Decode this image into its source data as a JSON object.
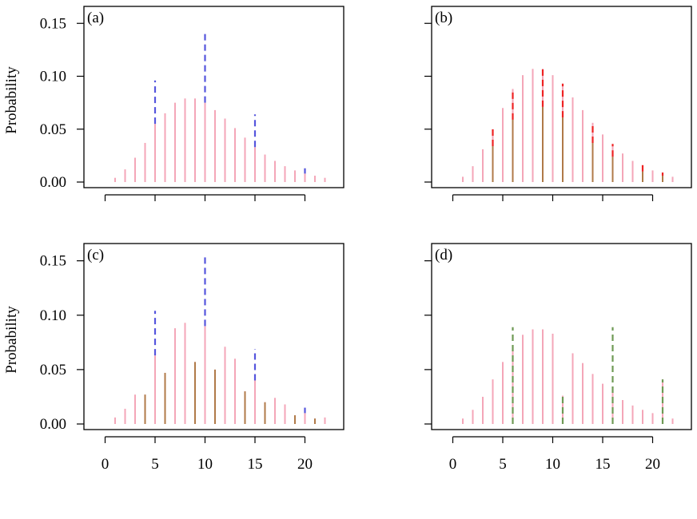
{
  "ylabel": "Probability",
  "colors": {
    "base": "#f4a6b8",
    "overlay": "#b07a48",
    "blue": "#5555dd",
    "red": "#ee2222",
    "green": "#6f9a55"
  },
  "chart_data": [
    {
      "type": "bar",
      "panel_label": "(a)",
      "ylabel": "Probability",
      "xlim": [
        -1,
        23
      ],
      "ylim": [
        0,
        0.16
      ],
      "yticks": [
        0.0,
        0.05,
        0.1,
        0.15
      ],
      "ytick_labels": [
        "0.00",
        "0.05",
        "0.10",
        "0.15"
      ],
      "xticks": [
        0,
        5,
        10,
        15,
        20
      ],
      "xtick_labels": [],
      "x": [
        1,
        2,
        3,
        4,
        5,
        6,
        7,
        8,
        9,
        10,
        11,
        12,
        13,
        14,
        15,
        16,
        17,
        18,
        19,
        20,
        21,
        22
      ],
      "series": [
        {
          "role": "base",
          "style": "solid",
          "color_key": "base",
          "values": [
            0.004,
            0.012,
            0.023,
            0.037,
            0.055,
            0.065,
            0.075,
            0.079,
            0.079,
            0.075,
            0.068,
            0.06,
            0.051,
            0.042,
            0.033,
            0.026,
            0.02,
            0.015,
            0.011,
            0.008,
            0.006,
            0.004
          ]
        },
        {
          "role": "overlay",
          "style": "dashed",
          "color_key": "blue",
          "x": [
            5,
            10,
            15,
            20
          ],
          "bottoms": [
            0.055,
            0.075,
            0.033,
            0.008
          ],
          "values": [
            0.096,
            0.143,
            0.064,
            0.013
          ]
        }
      ]
    },
    {
      "type": "bar",
      "panel_label": "(b)",
      "ylabel": "",
      "xlim": [
        -1,
        23
      ],
      "ylim": [
        0,
        0.16
      ],
      "yticks": [
        0.0,
        0.05,
        0.1,
        0.15
      ],
      "ytick_labels": [],
      "xticks": [
        0,
        5,
        10,
        15,
        20
      ],
      "xtick_labels": [],
      "x": [
        1,
        2,
        3,
        4,
        5,
        6,
        7,
        8,
        9,
        10,
        11,
        12,
        13,
        14,
        15,
        16,
        17,
        18,
        19,
        20,
        21,
        22
      ],
      "series": [
        {
          "role": "base",
          "style": "solid",
          "color_key": "base",
          "values": [
            0.005,
            0.015,
            0.031,
            0.05,
            0.07,
            0.088,
            0.101,
            0.107,
            0.107,
            0.101,
            0.092,
            0.08,
            0.068,
            0.056,
            0.045,
            0.035,
            0.027,
            0.02,
            0.015,
            0.011,
            0.008,
            0.005
          ]
        },
        {
          "role": "overlay",
          "style": "solid",
          "color_key": "overlay",
          "x": [
            4,
            6,
            9,
            11,
            14,
            16,
            19,
            21
          ],
          "values": [
            0.034,
            0.059,
            0.071,
            0.061,
            0.037,
            0.024,
            0.01,
            0.006
          ]
        },
        {
          "role": "overlay",
          "style": "dashed",
          "color_key": "red",
          "x": [
            4,
            6,
            9,
            11,
            14,
            16,
            19,
            21
          ],
          "bottoms": [
            0.034,
            0.059,
            0.071,
            0.061,
            0.037,
            0.024,
            0.01,
            0.006
          ],
          "values": [
            0.051,
            0.088,
            0.108,
            0.093,
            0.056,
            0.036,
            0.016,
            0.009
          ]
        }
      ]
    },
    {
      "type": "bar",
      "panel_label": "(c)",
      "ylabel": "Probability",
      "xlim": [
        -1,
        23
      ],
      "ylim": [
        0,
        0.16
      ],
      "yticks": [
        0.0,
        0.05,
        0.1,
        0.15
      ],
      "ytick_labels": [
        "0.00",
        "0.05",
        "0.10",
        "0.15"
      ],
      "xticks": [
        0,
        5,
        10,
        15,
        20
      ],
      "xtick_labels": [
        "0",
        "5",
        "10",
        "15",
        "20"
      ],
      "x": [
        1,
        2,
        3,
        4,
        5,
        6,
        7,
        8,
        9,
        10,
        11,
        12,
        13,
        14,
        15,
        16,
        17,
        18,
        19,
        20,
        21,
        22
      ],
      "series": [
        {
          "role": "base",
          "style": "solid",
          "color_key": "base",
          "values": [
            0.006,
            0.014,
            0.027,
            0.027,
            0.063,
            0.047,
            0.088,
            0.093,
            0.057,
            0.09,
            0.05,
            0.071,
            0.06,
            0.03,
            0.04,
            0.02,
            0.024,
            0.018,
            0.008,
            0.01,
            0.005,
            0.006
          ]
        },
        {
          "role": "overlay",
          "style": "solid",
          "color_key": "overlay",
          "x": [
            4,
            6,
            9,
            11,
            14,
            16,
            19,
            21
          ],
          "values": [
            0.027,
            0.047,
            0.057,
            0.05,
            0.03,
            0.02,
            0.008,
            0.005
          ]
        },
        {
          "role": "overlay",
          "style": "dashed",
          "color_key": "blue",
          "x": [
            5,
            10,
            15,
            20
          ],
          "bottoms": [
            0.063,
            0.09,
            0.04,
            0.01
          ],
          "values": [
            0.104,
            0.156,
            0.069,
            0.015
          ]
        }
      ]
    },
    {
      "type": "bar",
      "panel_label": "(d)",
      "ylabel": "",
      "xlim": [
        -1,
        23
      ],
      "ylim": [
        0,
        0.16
      ],
      "yticks": [
        0.0,
        0.05,
        0.1,
        0.15
      ],
      "ytick_labels": [],
      "xticks": [
        0,
        5,
        10,
        15,
        20
      ],
      "xtick_labels": [
        "0",
        "5",
        "10",
        "15",
        "20"
      ],
      "x": [
        1,
        2,
        3,
        4,
        5,
        6,
        7,
        8,
        9,
        10,
        11,
        12,
        13,
        14,
        15,
        16,
        17,
        18,
        19,
        20,
        21,
        22
      ],
      "series": [
        {
          "role": "base",
          "style": "solid",
          "color_key": "base",
          "values": [
            0.005,
            0.013,
            0.025,
            0.041,
            0.057,
            0.072,
            0.082,
            0.087,
            0.087,
            0.083,
            0.026,
            0.065,
            0.056,
            0.046,
            0.037,
            0.03,
            0.022,
            0.017,
            0.013,
            0.01,
            0.041,
            0.005
          ]
        },
        {
          "role": "overlay",
          "style": "dashed",
          "color_key": "green",
          "x": [
            6,
            11,
            16,
            21
          ],
          "bottoms": [
            0,
            0,
            0,
            0
          ],
          "values": [
            0.089,
            0.026,
            0.089,
            0.041
          ]
        }
      ]
    }
  ]
}
